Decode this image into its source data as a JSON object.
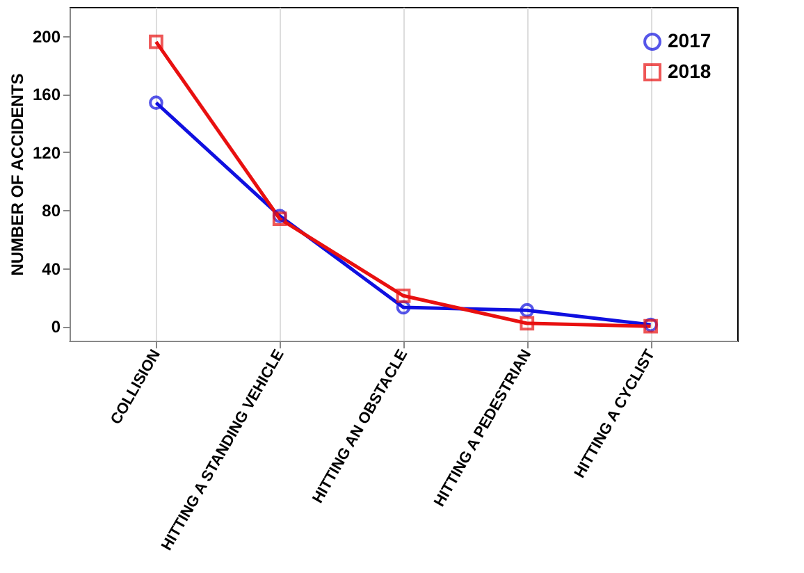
{
  "chart_data": {
    "type": "line",
    "ylabel": "NUMBER OF ACCIDENTS",
    "categories": [
      "COLLISION",
      "HITTING A STANDING VEHICLE",
      "HITTING AN OBSTACLE",
      "HITTING A PEDESTRIAN",
      "HITTING A CYCLIST"
    ],
    "series": [
      {
        "name": "2017",
        "color": "#1010e0",
        "marker": "circle",
        "values": [
          154,
          76,
          13,
          11,
          1
        ]
      },
      {
        "name": "2018",
        "color": "#e81010",
        "marker": "square",
        "values": [
          196,
          74,
          21,
          2,
          0
        ]
      }
    ],
    "ylim": [
      -10,
      220
    ],
    "yticks": [
      0,
      40,
      80,
      120,
      160,
      200
    ],
    "grid": "x",
    "legend": "top right",
    "line_style": "solid"
  }
}
